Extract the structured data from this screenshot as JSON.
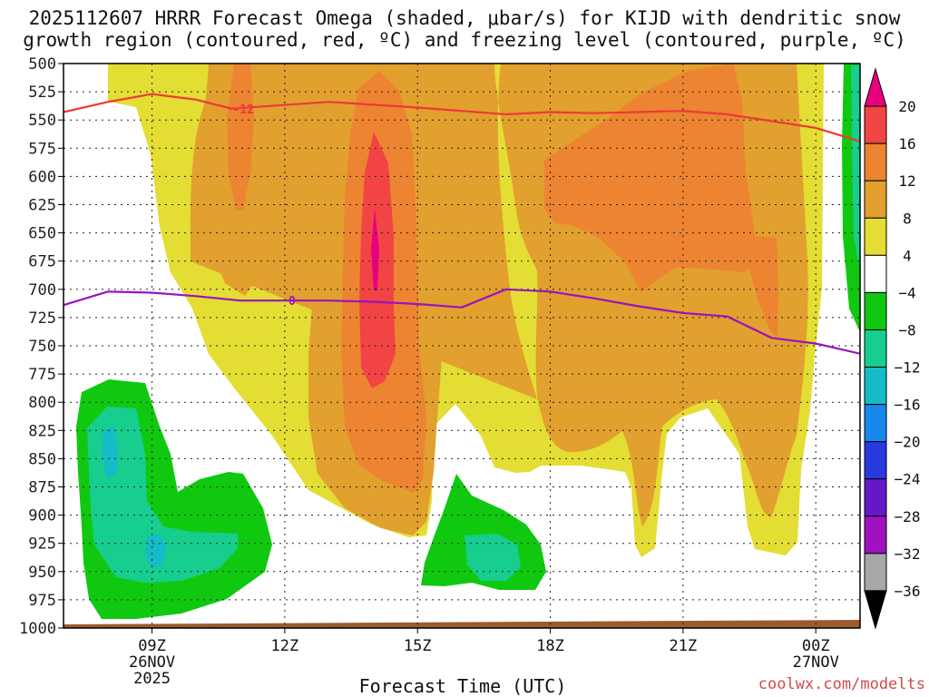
{
  "chart_data": {
    "type": "heatmap",
    "title_line1": "2025112607 HRRR Forecast Omega (shaded, μbar/s) for KIJD with dendritic snow",
    "title_line2": "growth region (contoured, red, ºC) and freezing level (contoured, purple, ºC)",
    "xlabel": "Forecast Time (UTC)",
    "credit": "coolwx.com/modelts",
    "x_unit": "hours since 2025-11-26 07Z",
    "x_range": [
      0,
      18
    ],
    "y_unit": "hPa",
    "y_range": [
      1000,
      500
    ],
    "y_ticks": [
      500,
      525,
      550,
      575,
      600,
      625,
      650,
      675,
      700,
      725,
      750,
      775,
      800,
      825,
      850,
      875,
      900,
      925,
      950,
      975,
      1000
    ],
    "x_ticks": [
      {
        "hour": 2,
        "label": "09Z",
        "date": "26NOV",
        "year": "2025"
      },
      {
        "hour": 5,
        "label": "12Z",
        "date": "",
        "year": ""
      },
      {
        "hour": 8,
        "label": "15Z",
        "date": "",
        "year": ""
      },
      {
        "hour": 11,
        "label": "18Z",
        "date": "",
        "year": ""
      },
      {
        "hour": 14,
        "label": "21Z",
        "date": "",
        "year": ""
      },
      {
        "hour": 17,
        "label": "00Z",
        "date": "27NOV",
        "year": ""
      }
    ],
    "colorbar": {
      "labels": [
        "20",
        "16",
        "12",
        "8",
        "4",
        "−4",
        "−8",
        "−12",
        "−16",
        "−20",
        "−24",
        "−28",
        "−32",
        "−36"
      ],
      "bins": [
        {
          "range": "20+",
          "color": "#e8007f"
        },
        {
          "range": "16 to 20",
          "color": "#f24444"
        },
        {
          "range": "12 to 16",
          "color": "#ec8432"
        },
        {
          "range": "8 to 12",
          "color": "#e2a02e"
        },
        {
          "range": "4 to 8",
          "color": "#e4dd34"
        },
        {
          "range": "-4 to 4",
          "color": "#ffffff"
        },
        {
          "range": "-8 to -4",
          "color": "#11c811"
        },
        {
          "range": "-12 to -8",
          "color": "#17ce8e"
        },
        {
          "range": "-16 to -12",
          "color": "#15bcc8"
        },
        {
          "range": "-20 to -16",
          "color": "#1787ec"
        },
        {
          "range": "-24 to -20",
          "color": "#2839e0"
        },
        {
          "range": "-28 to -24",
          "color": "#6618c8"
        },
        {
          "range": "-32 to -28",
          "color": "#a012c0"
        },
        {
          "range": "-36 to -32",
          "color": "#a8a8a8"
        },
        {
          "range": "below -36",
          "color": "#000000"
        }
      ]
    },
    "contours": [
      {
        "name": "dendritic -12C",
        "label": "-12",
        "color": "#f03838",
        "points": [
          [
            0,
            543
          ],
          [
            1,
            534
          ],
          [
            2,
            527
          ],
          [
            3,
            532
          ],
          [
            3.8,
            540
          ],
          [
            4.5,
            538
          ],
          [
            6,
            534
          ],
          [
            8,
            539
          ],
          [
            10,
            545
          ],
          [
            11,
            543
          ],
          [
            12,
            544
          ],
          [
            14,
            542
          ],
          [
            15,
            545
          ],
          [
            16,
            551
          ],
          [
            17,
            557
          ],
          [
            18,
            569
          ]
        ]
      },
      {
        "name": "freezing level 0C",
        "label": "0",
        "color": "#9b12c0",
        "points": [
          [
            0,
            714
          ],
          [
            1,
            702
          ],
          [
            2,
            703
          ],
          [
            3,
            706
          ],
          [
            4,
            710
          ],
          [
            5,
            710
          ],
          [
            6,
            710
          ],
          [
            7,
            711
          ],
          [
            8,
            713
          ],
          [
            9,
            716
          ],
          [
            10,
            700
          ],
          [
            11,
            702
          ],
          [
            12,
            708
          ],
          [
            13,
            715
          ],
          [
            14,
            721
          ],
          [
            15,
            724
          ],
          [
            16,
            743
          ],
          [
            17,
            748
          ],
          [
            18,
            757
          ]
        ]
      }
    ]
  }
}
